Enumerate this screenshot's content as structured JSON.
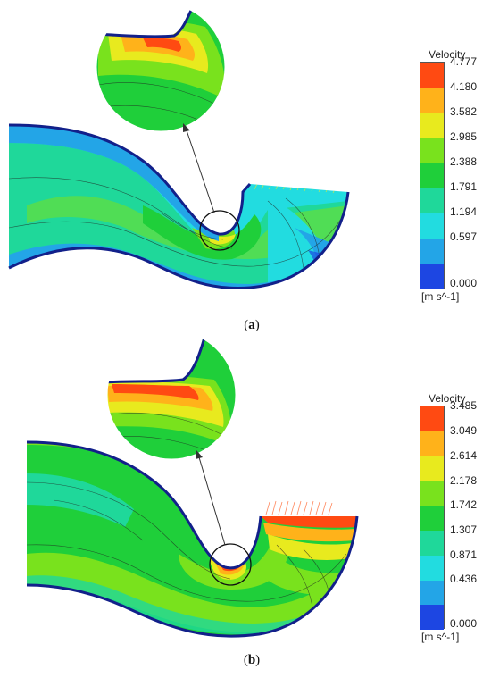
{
  "panel_a": {
    "caption_open": "(",
    "caption_letter": "a",
    "caption_close": ")",
    "legend": {
      "title": "Velocity",
      "unit": "[m s^-1]",
      "ticks": [
        "4.777",
        "4.180",
        "3.582",
        "2.985",
        "2.388",
        "1.791",
        "1.194",
        "0.597",
        "0.000"
      ]
    }
  },
  "panel_b": {
    "caption_open": "(",
    "caption_letter": "b",
    "caption_close": ")",
    "legend": {
      "title": "Velocity",
      "unit": "[m s^-1]",
      "ticks": [
        "3.485",
        "3.049",
        "2.614",
        "2.178",
        "1.742",
        "1.307",
        "0.871",
        "0.436",
        "0.000"
      ]
    }
  },
  "colormap": [
    "#ff4a12",
    "#ffb21a",
    "#e8ea1e",
    "#79e21d",
    "#1fcf3a",
    "#1fd89a",
    "#22dce0",
    "#23a5e7",
    "#1d46e2"
  ]
}
